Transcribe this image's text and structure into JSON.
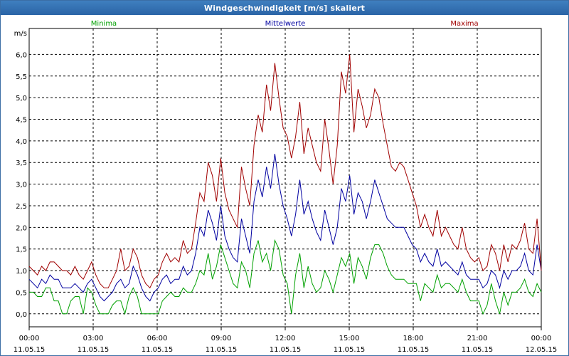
{
  "window": {
    "title": "Windgeschwindigkeit [m/s] skaliert"
  },
  "chart_data": {
    "type": "line",
    "title": "Windgeschwindigkeit [m/s] skaliert",
    "xlabel": "",
    "ylabel": "m/s",
    "ylim": [
      -0.3,
      6.6
    ],
    "xlim_hours": [
      0,
      24
    ],
    "grid": true,
    "legend": "top",
    "yticks": [
      "0,0",
      "0,5",
      "1,0",
      "1,5",
      "2,0",
      "2,5",
      "3,0",
      "3,5",
      "4,0",
      "4,5",
      "5,0",
      "5,5",
      "6,0"
    ],
    "xtick_times": [
      "00:00",
      "03:00",
      "06:00",
      "09:00",
      "12:00",
      "15:00",
      "18:00",
      "21:00",
      "00:00"
    ],
    "xtick_dates": [
      "11.05.15",
      "11.05.15",
      "11.05.15",
      "11.05.15",
      "11.05.15",
      "11.05.15",
      "11.05.15",
      "11.05.15",
      "12.05.15"
    ],
    "series": [
      {
        "name": "Minima",
        "color": "#00a000",
        "values": [
          0.5,
          0.5,
          0.4,
          0.4,
          0.6,
          0.6,
          0.3,
          0.3,
          0.0,
          0.0,
          0.3,
          0.4,
          0.4,
          0.0,
          0.6,
          0.5,
          0.2,
          0.0,
          0.0,
          0.0,
          0.2,
          0.3,
          0.3,
          0.0,
          0.4,
          0.6,
          0.4,
          0.0,
          0.0,
          0.0,
          0.0,
          0.0,
          0.3,
          0.4,
          0.5,
          0.4,
          0.4,
          0.6,
          0.5,
          0.5,
          0.7,
          1.0,
          0.9,
          1.4,
          0.8,
          1.1,
          1.6,
          1.3,
          1.0,
          0.7,
          0.6,
          1.2,
          1.0,
          0.6,
          1.4,
          1.7,
          1.2,
          1.4,
          1.0,
          1.7,
          1.5,
          0.9,
          0.7,
          0.0,
          0.9,
          1.4,
          0.6,
          1.1,
          0.7,
          0.5,
          0.6,
          1.0,
          0.8,
          0.5,
          0.9,
          1.3,
          1.1,
          1.4,
          0.7,
          1.3,
          1.1,
          0.8,
          1.3,
          1.6,
          1.6,
          1.4,
          1.1,
          0.9,
          0.8,
          0.8,
          0.8,
          0.7,
          0.7,
          0.7,
          0.3,
          0.7,
          0.6,
          0.5,
          0.9,
          0.6,
          0.7,
          0.7,
          0.6,
          0.5,
          0.8,
          0.5,
          0.3,
          0.3,
          0.3,
          0.0,
          0.2,
          0.7,
          0.3,
          0.0,
          0.5,
          0.2,
          0.5,
          0.5,
          0.6,
          0.8,
          0.5,
          0.4,
          0.7,
          0.5
        ]
      },
      {
        "name": "Mittelwerte",
        "color": "#0000a0",
        "values": [
          0.8,
          0.7,
          0.6,
          0.8,
          0.7,
          0.9,
          0.8,
          0.8,
          0.6,
          0.6,
          0.6,
          0.7,
          0.6,
          0.5,
          0.7,
          0.8,
          0.6,
          0.4,
          0.3,
          0.4,
          0.5,
          0.7,
          0.8,
          0.6,
          0.7,
          1.1,
          0.9,
          0.6,
          0.4,
          0.3,
          0.5,
          0.6,
          0.8,
          0.9,
          0.7,
          0.8,
          0.8,
          1.1,
          0.9,
          1.0,
          1.4,
          2.0,
          1.8,
          2.4,
          2.1,
          1.7,
          2.5,
          1.8,
          1.5,
          1.3,
          1.2,
          2.2,
          1.8,
          1.4,
          2.6,
          3.1,
          2.7,
          3.4,
          2.9,
          3.7,
          3.0,
          2.5,
          2.2,
          1.8,
          2.3,
          3.1,
          2.3,
          2.6,
          2.2,
          1.9,
          1.7,
          2.4,
          2.0,
          1.6,
          2.0,
          2.9,
          2.6,
          3.2,
          2.3,
          2.8,
          2.6,
          2.2,
          2.6,
          3.1,
          2.8,
          2.5,
          2.2,
          2.1,
          2.0,
          2.0,
          2.0,
          1.8,
          1.6,
          1.5,
          1.2,
          1.4,
          1.2,
          1.1,
          1.5,
          1.1,
          1.2,
          1.1,
          1.0,
          0.9,
          1.2,
          0.9,
          0.8,
          0.8,
          0.8,
          0.6,
          0.7,
          1.0,
          0.9,
          0.6,
          1.0,
          0.8,
          1.0,
          1.0,
          1.1,
          1.4,
          1.0,
          0.9,
          1.6,
          1.0
        ]
      },
      {
        "name": "Maxima",
        "color": "#a00000",
        "values": [
          1.1,
          1.0,
          0.9,
          1.1,
          1.0,
          1.2,
          1.2,
          1.1,
          1.0,
          1.0,
          0.9,
          1.1,
          0.9,
          0.8,
          1.0,
          1.2,
          0.9,
          0.7,
          0.6,
          0.6,
          0.8,
          1.0,
          1.5,
          1.0,
          1.1,
          1.5,
          1.3,
          0.9,
          0.7,
          0.6,
          0.8,
          0.9,
          1.2,
          1.4,
          1.2,
          1.3,
          1.2,
          1.7,
          1.4,
          1.5,
          2.1,
          2.8,
          2.6,
          3.5,
          3.2,
          2.6,
          3.6,
          2.8,
          2.4,
          2.2,
          2.0,
          3.4,
          2.9,
          2.5,
          3.9,
          4.6,
          4.2,
          5.3,
          4.7,
          5.8,
          5.0,
          4.3,
          4.1,
          3.6,
          4.1,
          4.9,
          3.7,
          4.3,
          3.9,
          3.5,
          3.3,
          4.5,
          3.8,
          3.0,
          3.9,
          5.6,
          5.1,
          6.0,
          4.2,
          5.2,
          4.8,
          4.3,
          4.6,
          5.2,
          5.0,
          4.4,
          3.9,
          3.4,
          3.3,
          3.5,
          3.4,
          3.1,
          2.8,
          2.5,
          2.0,
          2.3,
          2.0,
          1.8,
          2.4,
          1.8,
          2.0,
          1.8,
          1.6,
          1.5,
          2.0,
          1.5,
          1.3,
          1.2,
          1.3,
          1.0,
          1.1,
          1.6,
          1.4,
          1.0,
          1.6,
          1.2,
          1.6,
          1.5,
          1.7,
          2.1,
          1.5,
          1.4,
          2.2,
          1.0
        ]
      }
    ]
  }
}
